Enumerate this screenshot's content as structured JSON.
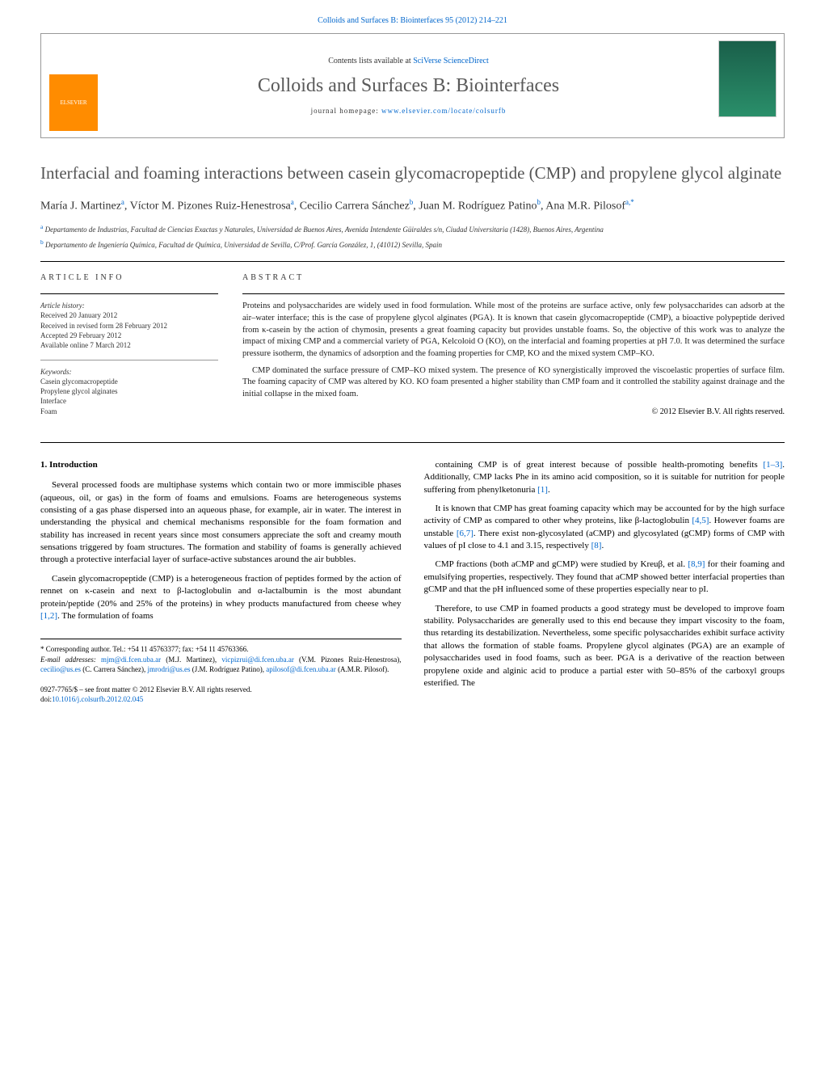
{
  "journal_ref": "Colloids and Surfaces B: Biointerfaces 95 (2012) 214–221",
  "header": {
    "publisher": "ELSEVIER",
    "contents_prefix": "Contents lists available at ",
    "contents_link": "SciVerse ScienceDirect",
    "journal_title": "Colloids and Surfaces B: Biointerfaces",
    "homepage_prefix": "journal homepage: ",
    "homepage_url": "www.elsevier.com/locate/colsurfb"
  },
  "article": {
    "title": "Interfacial and foaming interactions between casein glycomacropeptide (CMP) and propylene glycol alginate",
    "authors_html": "María J. Martinez<sup>a</sup>, Víctor M. Pizones Ruiz-Henestrosa<sup>a</sup>, Cecilio Carrera Sánchez<sup>b</sup>, Juan M. Rodríguez Patino<sup>b</sup>, Ana M.R. Pilosof<sup>a,*</sup>",
    "affiliations": [
      {
        "sup": "a",
        "text": "Departamento de Industrias, Facultad de Ciencias Exactas y Naturales, Universidad de Buenos Aires, Avenida Intendente Güiraldes s/n, Ciudad Universitaria (1428), Buenos Aires, Argentina"
      },
      {
        "sup": "b",
        "text": "Departamento de Ingeniería Química, Facultad de Química, Universidad de Sevilla, C/Prof. García González, 1, (41012) Sevilla, Spain"
      }
    ]
  },
  "info": {
    "label": "article info",
    "history_label": "Article history:",
    "history": [
      "Received 20 January 2012",
      "Received in revised form 28 February 2012",
      "Accepted 29 February 2012",
      "Available online 7 March 2012"
    ],
    "keywords_label": "Keywords:",
    "keywords": [
      "Casein glycomacropeptide",
      "Propylene glycol alginates",
      "Interface",
      "Foam"
    ]
  },
  "abstract": {
    "label": "abstract",
    "paragraphs": [
      "Proteins and polysaccharides are widely used in food formulation. While most of the proteins are surface active, only few polysaccharides can adsorb at the air–water interface; this is the case of propylene glycol alginates (PGA). It is known that casein glycomacropeptide (CMP), a bioactive polypeptide derived from κ-casein by the action of chymosin, presents a great foaming capacity but provides unstable foams. So, the objective of this work was to analyze the impact of mixing CMP and a commercial variety of PGA, Kelcoloid O (KO), on the interfacial and foaming properties at pH 7.0. It was determined the surface pressure isotherm, the dynamics of adsorption and the foaming properties for CMP, KO and the mixed system CMP–KO.",
      "CMP dominated the surface pressure of CMP–KO mixed system. The presence of KO synergistically improved the viscoelastic properties of surface film. The foaming capacity of CMP was altered by KO. KO foam presented a higher stability than CMP foam and it controlled the stability against drainage and the initial collapse in the mixed foam."
    ],
    "copyright": "© 2012 Elsevier B.V. All rights reserved."
  },
  "body": {
    "section_heading": "1. Introduction",
    "left_paragraphs": [
      "Several processed foods are multiphase systems which contain two or more immiscible phases (aqueous, oil, or gas) in the form of foams and emulsions. Foams are heterogeneous systems consisting of a gas phase dispersed into an aqueous phase, for example, air in water. The interest in understanding the physical and chemical mechanisms responsible for the foam formation and stability has increased in recent years since most consumers appreciate the soft and creamy mouth sensations triggered by foam structures. The formation and stability of foams is generally achieved through a protective interfacial layer of surface-active substances around the air bubbles.",
      "Casein glycomacropeptide (CMP) is a heterogeneous fraction of peptides formed by the action of rennet on κ-casein and next to β-lactoglobulin and α-lactalbumin is the most abundant protein/peptide (20% and 25% of the proteins) in whey products manufactured from cheese whey <span class=\"cit\">[1,2]</span>. The formulation of foams"
    ],
    "right_paragraphs": [
      "containing CMP is of great interest because of possible health-promoting benefits <span class=\"cit\">[1–3]</span>. Additionally, CMP lacks Phe in its amino acid composition, so it is suitable for nutrition for people suffering from phenylketonuria <span class=\"cit\">[1]</span>.",
      "It is known that CMP has great foaming capacity which may be accounted for by the high surface activity of CMP as compared to other whey proteins, like β-lactoglobulin <span class=\"cit\">[4,5]</span>. However foams are unstable <span class=\"cit\">[6,7]</span>. There exist non-glycosylated (aCMP) and glycosylated (gCMP) forms of CMP with values of pI close to 4.1 and 3.15, respectively <span class=\"cit\">[8]</span>.",
      "CMP fractions (both aCMP and gCMP) were studied by Kreuβ, et al. <span class=\"cit\">[8,9]</span> for their foaming and emulsifying properties, respectively. They found that aCMP showed better interfacial properties than gCMP and that the pH influenced some of these properties especially near to pI.",
      "Therefore, to use CMP in foamed products a good strategy must be developed to improve foam stability. Polysaccharides are generally used to this end because they impart viscosity to the foam, thus retarding its destabilization. Nevertheless, some specific polysaccharides exhibit surface activity that allows the formation of stable foams. Propylene glycol alginates (PGA) are an example of polysaccharides used in food foams, such as beer. PGA is a derivative of the reaction between propylene oxide and alginic acid to produce a partial ester with 50–85% of the carboxyl groups esterified. The"
    ]
  },
  "footnotes": {
    "corresponding": "* Corresponding author. Tel.: +54 11 45763377; fax: +54 11 45763366.",
    "emails_label": "E-mail addresses:",
    "emails": [
      {
        "addr": "mjm@di.fcen.uba.ar",
        "who": "(M.J. Martinez)"
      },
      {
        "addr": "vicpizrui@di.fcen.uba.ar",
        "who": "(V.M. Pizones Ruiz-Henestrosa)"
      },
      {
        "addr": "cecilio@us.es",
        "who": "(C. Carrera Sánchez)"
      },
      {
        "addr": "jmrodri@us.es",
        "who": "(J.M. Rodríguez Patino)"
      },
      {
        "addr": "apilosof@di.fcen.uba.ar",
        "who": "(A.M.R. Pilosof)"
      }
    ]
  },
  "doi": {
    "line1": "0927-7765/$ – see front matter © 2012 Elsevier B.V. All rights reserved.",
    "line2_prefix": "doi:",
    "line2_link": "10.1016/j.colsurfb.2012.02.045"
  },
  "colors": {
    "link": "#0066cc",
    "title_gray": "#555555",
    "publisher_orange": "#ff8c00"
  }
}
